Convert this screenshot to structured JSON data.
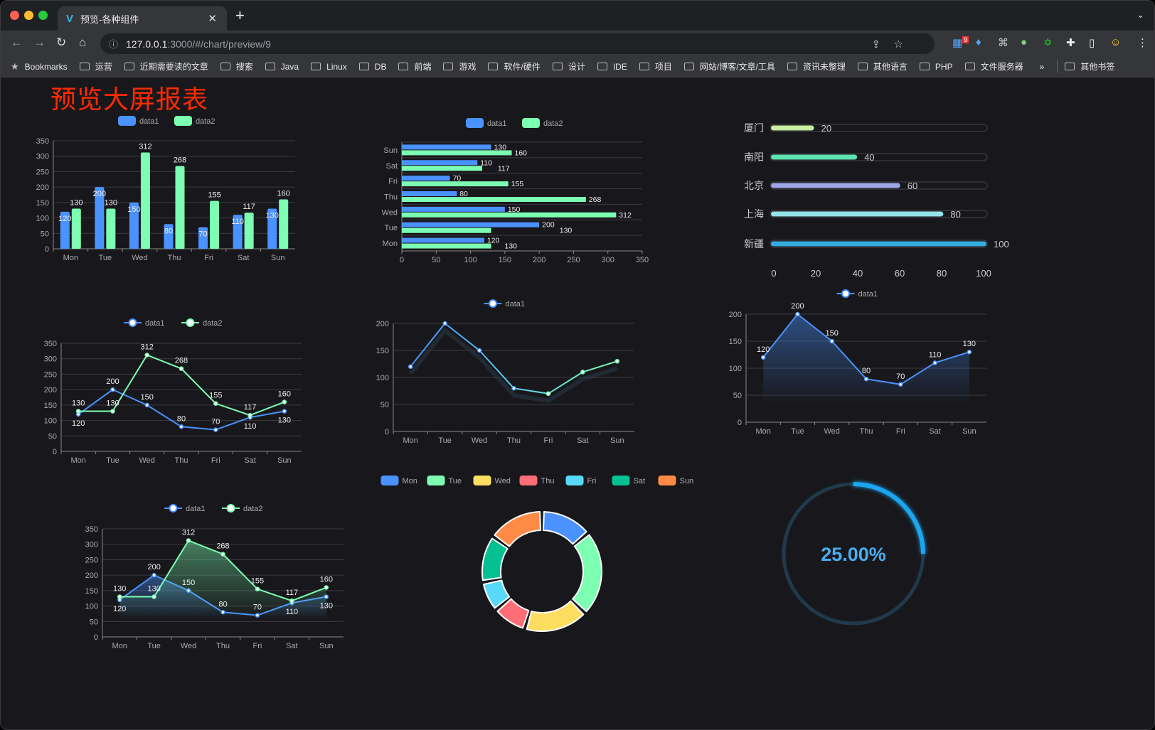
{
  "browser": {
    "tab_title": "预览-各种组件",
    "url_host": "127.0.0.1",
    "url_rest": ":3000/#/chart/preview/9",
    "extension_badge": "9",
    "bookmarks": [
      "Bookmarks",
      "运营",
      "近期需要读的文章",
      "搜索",
      "Java",
      "Linux",
      "DB",
      "前端",
      "游戏",
      "软件/硬件",
      "设计",
      "IDE",
      "项目",
      "网站/博客/文章/工具",
      "资讯未整理",
      "其他语言",
      "PHP",
      "文件服务器"
    ],
    "more_bookmarks": "»",
    "other_bookmarks": "其他书签"
  },
  "page": {
    "title": "预览大屏报表"
  },
  "colors": {
    "blue": "#4992ff",
    "green": "#7cffb2",
    "yellow": "#fddd60",
    "red": "#ff6e76",
    "cyan": "#58d9f9",
    "teal": "#05c091",
    "orange": "#ff8a45",
    "title": "#ff2a00"
  },
  "chart_data": [
    {
      "type": "bar",
      "orientation": "vertical",
      "categories": [
        "Mon",
        "Tue",
        "Wed",
        "Thu",
        "Fri",
        "Sat",
        "Sun"
      ],
      "series": [
        {
          "name": "data1",
          "values": [
            120,
            200,
            150,
            80,
            70,
            110,
            130
          ]
        },
        {
          "name": "data2",
          "values": [
            130,
            130,
            312,
            268,
            155,
            117,
            160
          ]
        }
      ],
      "ylim": [
        0,
        350
      ],
      "yticks": [
        0,
        50,
        100,
        150,
        200,
        250,
        300,
        350
      ],
      "legend": "top",
      "grid": true
    },
    {
      "type": "bar",
      "orientation": "horizontal",
      "categories": [
        "Mon",
        "Tue",
        "Wed",
        "Thu",
        "Fri",
        "Sat",
        "Sun"
      ],
      "series": [
        {
          "name": "data1",
          "values": [
            120,
            200,
            150,
            80,
            70,
            110,
            130
          ]
        },
        {
          "name": "data2",
          "values": [
            130,
            130,
            312,
            268,
            155,
            117,
            160
          ]
        }
      ],
      "xlim": [
        0,
        350
      ],
      "xticks": [
        0,
        50,
        100,
        150,
        200,
        250,
        300,
        350
      ],
      "legend": "top",
      "grid": true
    },
    {
      "type": "bar",
      "orientation": "horizontal",
      "style": "progress",
      "categories": [
        "厦门",
        "南阳",
        "北京",
        "上海",
        "新疆"
      ],
      "values": [
        20,
        40,
        60,
        80,
        100
      ],
      "colors": [
        "#c6f0a0",
        "#5fe3b2",
        "#9fa6e8",
        "#93e3e8",
        "#35ace0"
      ],
      "xlim": [
        0,
        100
      ],
      "xticks": [
        0,
        20,
        40,
        60,
        80,
        100
      ]
    },
    {
      "type": "line",
      "categories": [
        "Mon",
        "Tue",
        "Wed",
        "Thu",
        "Fri",
        "Sat",
        "Sun"
      ],
      "series": [
        {
          "name": "data1",
          "values": [
            120,
            200,
            150,
            80,
            70,
            110,
            130
          ]
        },
        {
          "name": "data2",
          "values": [
            130,
            130,
            312,
            268,
            155,
            117,
            160
          ]
        }
      ],
      "ylim": [
        0,
        350
      ],
      "yticks": [
        0,
        50,
        100,
        150,
        200,
        250,
        300,
        350
      ],
      "legend": "top",
      "grid": true
    },
    {
      "type": "line",
      "categories": [
        "Mon",
        "Tue",
        "Wed",
        "Thu",
        "Fri",
        "Sat",
        "Sun"
      ],
      "series": [
        {
          "name": "data1",
          "values": [
            120,
            200,
            150,
            80,
            70,
            110,
            130
          ]
        }
      ],
      "ylim": [
        0,
        200
      ],
      "yticks": [
        0,
        50,
        100,
        150,
        200
      ],
      "legend": "top",
      "grid": true,
      "gradient_colors": [
        "#4992ff",
        "#7cffb2"
      ]
    },
    {
      "type": "area",
      "categories": [
        "Mon",
        "Tue",
        "Wed",
        "Thu",
        "Fri",
        "Sat",
        "Sun"
      ],
      "series": [
        {
          "name": "data1",
          "values": [
            120,
            200,
            150,
            80,
            70,
            110,
            130
          ]
        }
      ],
      "ylim": [
        0,
        200
      ],
      "yticks": [
        0,
        50,
        100,
        150,
        200
      ],
      "legend": "top",
      "grid": true
    },
    {
      "type": "area",
      "categories": [
        "Mon",
        "Tue",
        "Wed",
        "Thu",
        "Fri",
        "Sat",
        "Sun"
      ],
      "series": [
        {
          "name": "data1",
          "values": [
            120,
            200,
            150,
            80,
            70,
            110,
            130
          ]
        },
        {
          "name": "data2",
          "values": [
            130,
            130,
            312,
            268,
            155,
            117,
            160
          ]
        }
      ],
      "ylim": [
        0,
        350
      ],
      "yticks": [
        0,
        50,
        100,
        150,
        200,
        250,
        300,
        350
      ],
      "legend": "top",
      "grid": true
    },
    {
      "type": "pie",
      "donut": true,
      "categories": [
        "Mon",
        "Tue",
        "Wed",
        "Thu",
        "Fri",
        "Sat",
        "Sun"
      ],
      "values": [
        120,
        200,
        150,
        80,
        70,
        110,
        130
      ],
      "legend": "top"
    },
    {
      "type": "gauge",
      "value": 25,
      "label": "25.00%",
      "color": "#1ba6f2"
    }
  ]
}
